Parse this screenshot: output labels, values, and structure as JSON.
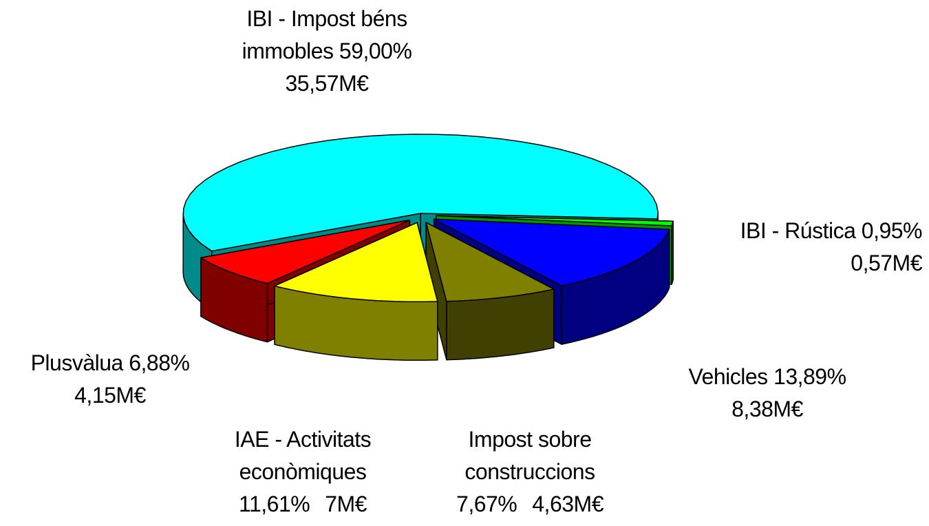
{
  "chart_data": {
    "type": "pie3d",
    "categories": [
      "IBI - Impost béns immobles",
      "IBI - Rústica",
      "Vehicles",
      "Impost sobre construccions",
      "IAE - Activitats econòmiques",
      "Plusvàlua"
    ],
    "values": [
      59,
      0.95,
      13.89,
      7.67,
      11.61,
      6.88
    ],
    "value_labels": [
      "59,00%",
      "0,95%",
      "13,89%",
      "7,67%",
      "11,61%",
      "6,88%"
    ],
    "amounts": [
      35.57,
      0.57,
      8.38,
      4.63,
      7,
      4.15
    ],
    "amount_labels": [
      "35,57M€",
      "0,57M€",
      "8,38M€",
      "4,63M€",
      "7M€",
      "4,15M€"
    ],
    "colors": [
      "#00ffff",
      "#00ff00",
      "#0000ff",
      "#808000",
      "#ffff00",
      "#ff0000"
    ],
    "side_colors": [
      "#008b8b",
      "#009900",
      "#000080",
      "#404000",
      "#808000",
      "#800000"
    ]
  }
}
